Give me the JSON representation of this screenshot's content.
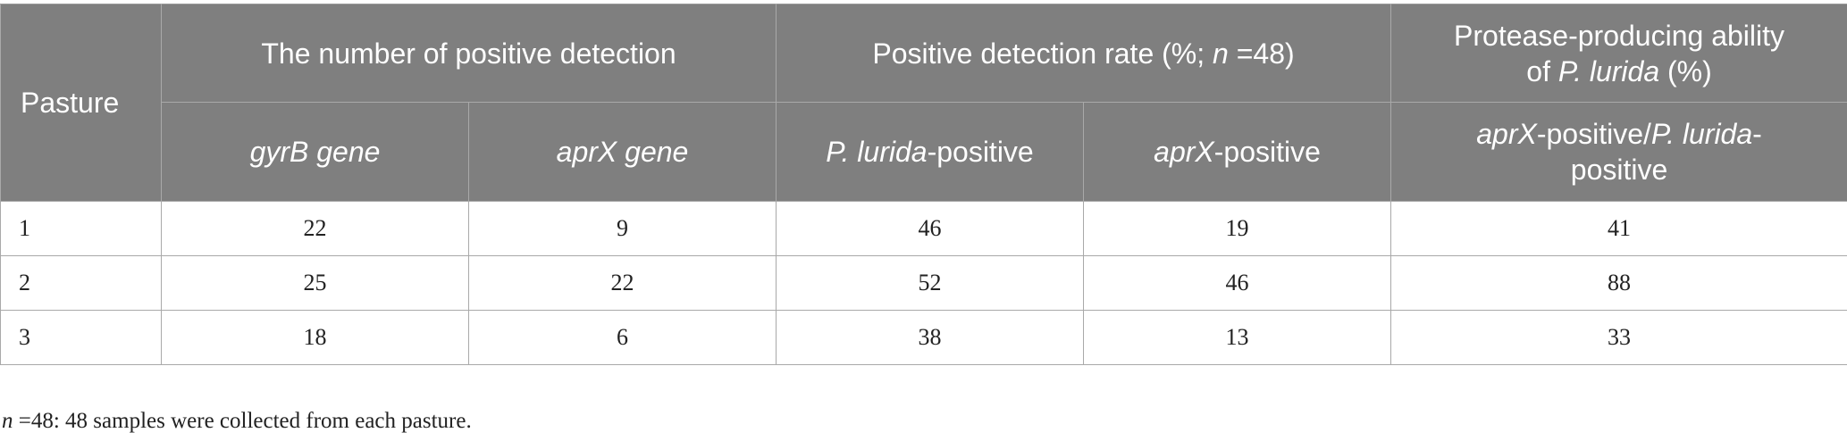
{
  "table": {
    "header": {
      "pasture": "Pasture",
      "group1": "The number of positive detection",
      "group2_pre": "Positive detection rate (%; ",
      "group2_n": "n",
      "group2_post": " =48)",
      "group3_line1": "Protease-producing ability",
      "group3_pre": "of ",
      "group3_species": "P. lurida",
      "group3_post": " (%)",
      "col_gyrB": "gyrB gene",
      "col_aprX": "aprX gene",
      "col_plurida_species": "P. lurida",
      "col_plurida_suffix": "-positive",
      "col_aprXpos_gene": "aprX",
      "col_aprXpos_suffix": "-positive",
      "col_ratio_gene": "aprX",
      "col_ratio_mid": "-positive/",
      "col_ratio_species": "P. lurida",
      "col_ratio_dash": "-",
      "col_ratio_end": "positive"
    },
    "rows": [
      [
        "1",
        "22",
        "9",
        "46",
        "19",
        "41"
      ],
      [
        "2",
        "25",
        "22",
        "52",
        "46",
        "88"
      ],
      [
        "3",
        "18",
        "6",
        "38",
        "13",
        "33"
      ]
    ]
  },
  "footnote": {
    "n": "n",
    "text": " =48: 48 samples were collected from each pasture."
  }
}
